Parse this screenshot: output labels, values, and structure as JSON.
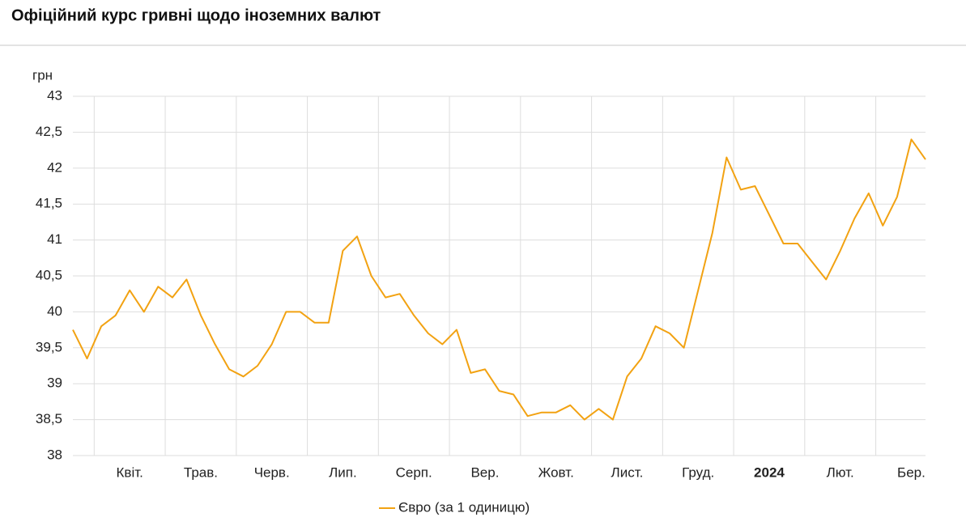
{
  "chart_data": {
    "type": "line",
    "title": "Офіційний курс гривні щодо іноземних валют",
    "y_label": "грн",
    "categories": [
      null,
      null,
      null,
      null,
      "Квіт.",
      null,
      null,
      null,
      null,
      "Трав.",
      null,
      null,
      null,
      null,
      "Черв.",
      null,
      null,
      null,
      null,
      "Лип.",
      null,
      null,
      null,
      null,
      "Серп.",
      null,
      null,
      null,
      null,
      "Вер.",
      null,
      null,
      null,
      null,
      "Жовт.",
      null,
      null,
      null,
      null,
      "Лист.",
      null,
      null,
      null,
      null,
      "Груд.",
      null,
      null,
      null,
      null,
      "2024",
      null,
      null,
      null,
      null,
      "Лют.",
      null,
      null,
      null,
      null,
      "Бер.",
      null
    ],
    "series": [
      {
        "name": "Євро (за 1 одиницю)",
        "color": "#f2a212",
        "values": [
          39.75,
          39.35,
          39.8,
          39.95,
          40.3,
          40.0,
          40.35,
          40.2,
          40.45,
          39.95,
          39.55,
          39.2,
          39.1,
          39.25,
          39.55,
          40.0,
          40.0,
          39.85,
          39.85,
          40.85,
          41.05,
          40.5,
          40.2,
          40.25,
          39.95,
          39.7,
          39.55,
          39.75,
          39.15,
          39.2,
          38.9,
          38.85,
          38.55,
          38.6,
          38.6,
          38.7,
          38.5,
          38.65,
          38.5,
          39.1,
          39.35,
          39.8,
          39.7,
          39.5,
          40.3,
          41.1,
          42.15,
          41.7,
          41.75,
          41.35,
          40.95,
          40.95,
          40.7,
          40.45,
          40.85,
          41.3,
          41.65,
          41.2,
          41.6,
          42.4,
          42.12
        ]
      }
    ],
    "ylim": [
      38,
      43
    ],
    "yticks": [
      38,
      {
        "value": 38.5,
        "label": "38,5"
      },
      39,
      {
        "value": 39.5,
        "label": "39,5"
      },
      40,
      {
        "value": 40.5,
        "label": "40,5"
      },
      41,
      {
        "value": 41.5,
        "label": "41,5"
      },
      42,
      {
        "value": 42.5,
        "label": "42,5"
      },
      43
    ],
    "grid": true
  }
}
